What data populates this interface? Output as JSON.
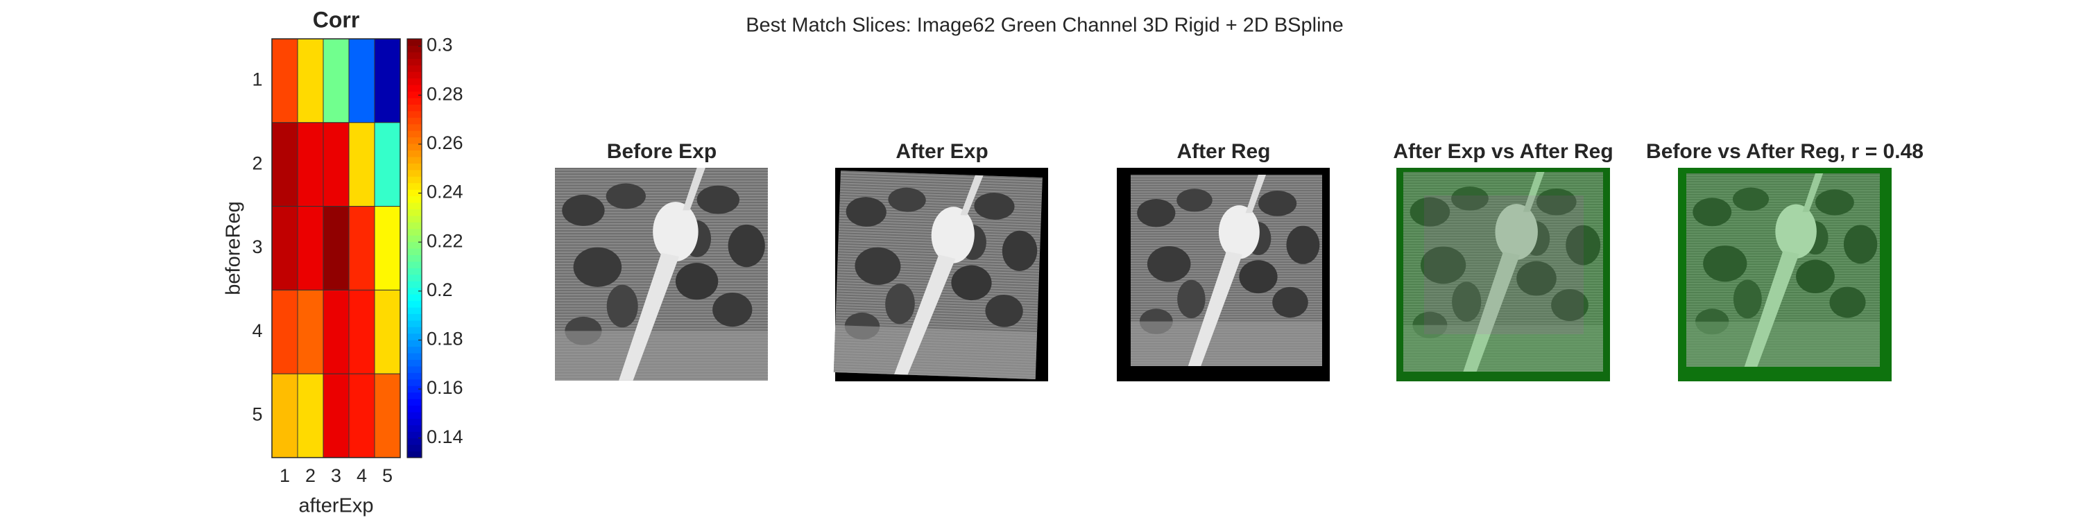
{
  "title": "Best Match Slices: Image62 Green Channel 3D Rigid + 2D BSpline",
  "chart_data": {
    "type": "heatmap",
    "title": "Corr",
    "xlabel": "afterExp",
    "ylabel": "beforeReg",
    "x": [
      1,
      2,
      3,
      4,
      5
    ],
    "y": [
      1,
      2,
      3,
      4,
      5
    ],
    "values": [
      [
        0.27,
        0.245,
        0.215,
        0.17,
        0.14
      ],
      [
        0.295,
        0.285,
        0.285,
        0.245,
        0.205
      ],
      [
        0.292,
        0.285,
        0.3,
        0.275,
        0.24
      ],
      [
        0.27,
        0.265,
        0.285,
        0.278,
        0.245
      ],
      [
        0.25,
        0.245,
        0.285,
        0.278,
        0.265
      ]
    ],
    "colormap": "jet",
    "clim": [
      0.132,
      0.303
    ],
    "cticks": [
      0.14,
      0.16,
      0.18,
      0.2,
      0.22,
      0.24,
      0.26,
      0.28,
      0.3
    ]
  },
  "panels": [
    {
      "title": "Before Exp"
    },
    {
      "title": "After Exp"
    },
    {
      "title": "After Reg"
    },
    {
      "title": "After Exp vs After Reg"
    },
    {
      "title": "Before vs After Reg, r = 0.48"
    }
  ]
}
